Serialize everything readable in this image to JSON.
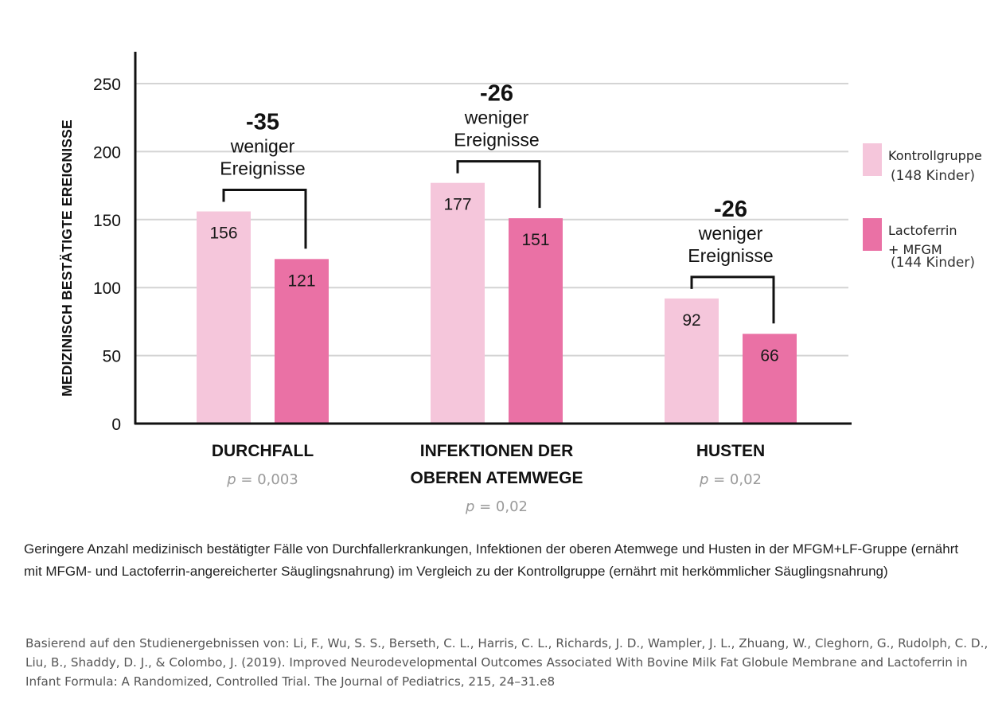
{
  "chart_data": {
    "type": "bar",
    "ylabel": "MEDIZINISCH BESTÄTIGTE EREIGNISSE",
    "ylim": [
      0,
      250
    ],
    "yticks": [
      0,
      50,
      100,
      150,
      200,
      250
    ],
    "grid": true,
    "legend_position": "right",
    "categories": [
      "DURCHFALL",
      "INFEKTIONEN DER\nOBEREN ATEMWEGE",
      "HUSTEN"
    ],
    "p_values": [
      "= 0,003",
      "= 0,02",
      "= 0,02"
    ],
    "p_symbol": "p",
    "series": [
      {
        "name": "Kontrollgruppe",
        "sub": "(148 Kinder)",
        "color": "#f5c6db",
        "values": [
          156,
          177,
          92
        ]
      },
      {
        "name": "Lactoferrin\n+ MFGM",
        "sub": "(144 Kinder)",
        "color": "#ea71a5",
        "values": [
          121,
          151,
          66
        ]
      }
    ],
    "annotations": [
      {
        "value": "-35",
        "text1": "weniger",
        "text2": "Ereignisse"
      },
      {
        "value": "-26",
        "text1": "weniger",
        "text2": "Ereignisse"
      },
      {
        "value": "-26",
        "text1": "weniger",
        "text2": "Ereignisse"
      }
    ]
  },
  "caption": "Geringere Anzahl medizinisch bestätigter Fälle von Durchfallerkrankungen, Infektionen der oberen Atemwege und Husten in der MFGM+LF-Gruppe (ernährt mit MFGM- und Lactoferrin-angereicherter Säuglingsnahrung) im Vergleich zu der Kontrollgruppe (ernährt mit herkömmlicher Säuglingsnahrung)",
  "source": "Basierend auf den Studienergebnissen von: Li, F., Wu, S. S., Berseth, C. L., Harris, C. L., Richards, J. D., Wampler, J. L., Zhuang, W., Cleghorn, G., Rudolph, C. D., Liu, B., Shaddy, D. J., & Colombo, J. (2019). Improved Neurodevelopmental Outcomes Associated With Bovine Milk Fat Globule Membrane and Lactoferrin in Infant Formula: A Randomized, Controlled Trial. The Journal of Pediatrics, 215, 24–31.e8"
}
